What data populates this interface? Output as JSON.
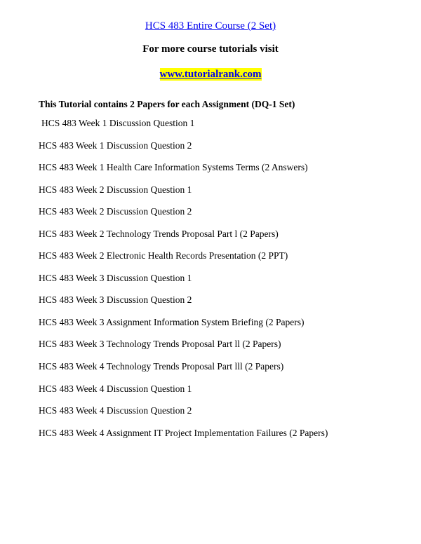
{
  "title": "HCS 483 Entire Course (2 Set)",
  "subtitle": "For more course tutorials visit",
  "site_link": "www.tutorialrank.com",
  "intro": "This Tutorial contains 2 Papers for each Assignment (DQ-1 Set)",
  "items": [
    "HCS 483 Week 1 Discussion Question 1",
    "HCS 483 Week 1 Discussion Question 2",
    "HCS 483 Week 1 Health Care Information Systems Terms (2 Answers)",
    "HCS 483 Week 2 Discussion Question 1",
    "HCS 483 Week 2 Discussion Question 2",
    "HCS 483 Week 2 Technology Trends Proposal Part l (2 Papers)",
    "HCS 483 Week 2 Electronic Health Records Presentation (2 PPT)",
    "HCS 483 Week 3 Discussion Question 1",
    "HCS 483 Week 3 Discussion Question 2",
    "HCS 483 Week 3 Assignment Information System Briefing (2 Papers)",
    "HCS 483 Week 3 Technology Trends Proposal Part ll (2 Papers)",
    "HCS 483 Week 4 Technology Trends Proposal Part lll (2 Papers)",
    "HCS 483 Week 4 Discussion Question 1",
    "HCS 483 Week 4 Discussion Question 2",
    "HCS 483 Week 4 Assignment IT Project Implementation Failures (2 Papers)"
  ],
  "colors": {
    "link": "#0000ee",
    "highlight": "#ffff00",
    "page_bg": "#ffffff",
    "body_bg": "#d0d0d0",
    "text": "#000000"
  }
}
